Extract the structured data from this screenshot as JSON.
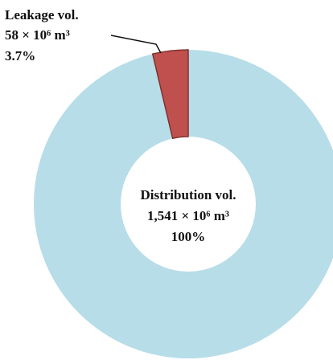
{
  "chart_data": {
    "type": "donut",
    "labels": [
      "Leakage vol.",
      "Distribution vol."
    ],
    "volumes": [
      "58 × 10⁶ m³",
      "1,541 × 10⁶ m³"
    ],
    "values": [
      3.7,
      100
    ],
    "value_labels": [
      "3.7%",
      "100%"
    ],
    "colors": [
      "#c0504d",
      "#b7dde8"
    ]
  }
}
